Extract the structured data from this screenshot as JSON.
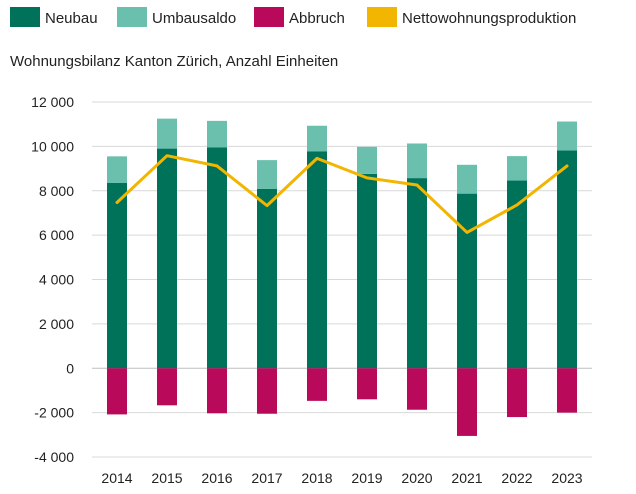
{
  "chart_data": {
    "type": "bar",
    "subtitle": "Wohnungsbilanz Kanton Zürich, Anzahl Einheiten",
    "categories": [
      "2014",
      "2015",
      "2016",
      "2017",
      "2018",
      "2019",
      "2020",
      "2021",
      "2022",
      "2023"
    ],
    "ylim": [
      -4000,
      12000
    ],
    "yticks": [
      12000,
      10000,
      8000,
      6000,
      4000,
      2000,
      0,
      -2000,
      -4000
    ],
    "ytick_labels": [
      "12 000",
      "10 000",
      "8 000",
      "6 000",
      "4 000",
      "2 000",
      "0",
      "-2 000",
      "-4 000"
    ],
    "grid": true,
    "legend_position": "top",
    "series": [
      {
        "name": "Neubau",
        "kind": "bar",
        "stack": "positive",
        "color": "#00725a",
        "values": [
          8350,
          9900,
          9950,
          8080,
          9780,
          8760,
          8570,
          7870,
          8460,
          9820
        ]
      },
      {
        "name": "Umbausaldo",
        "kind": "bar",
        "stack": "positive",
        "color": "#6abfad",
        "values": [
          1200,
          1350,
          1200,
          1300,
          1150,
          1220,
          1560,
          1300,
          1100,
          1300
        ]
      },
      {
        "name": "Abbruch",
        "kind": "bar",
        "stack": "negative",
        "color": "#b8095a",
        "values": [
          -2080,
          -1670,
          -2030,
          -2050,
          -1470,
          -1400,
          -1870,
          -3050,
          -2200,
          -2000
        ]
      },
      {
        "name": "Nettowohnungsproduktion",
        "kind": "line",
        "color": "#f2b500",
        "values": [
          7470,
          9580,
          9120,
          7330,
          9460,
          8580,
          8260,
          6120,
          7360,
          9120
        ]
      }
    ]
  }
}
